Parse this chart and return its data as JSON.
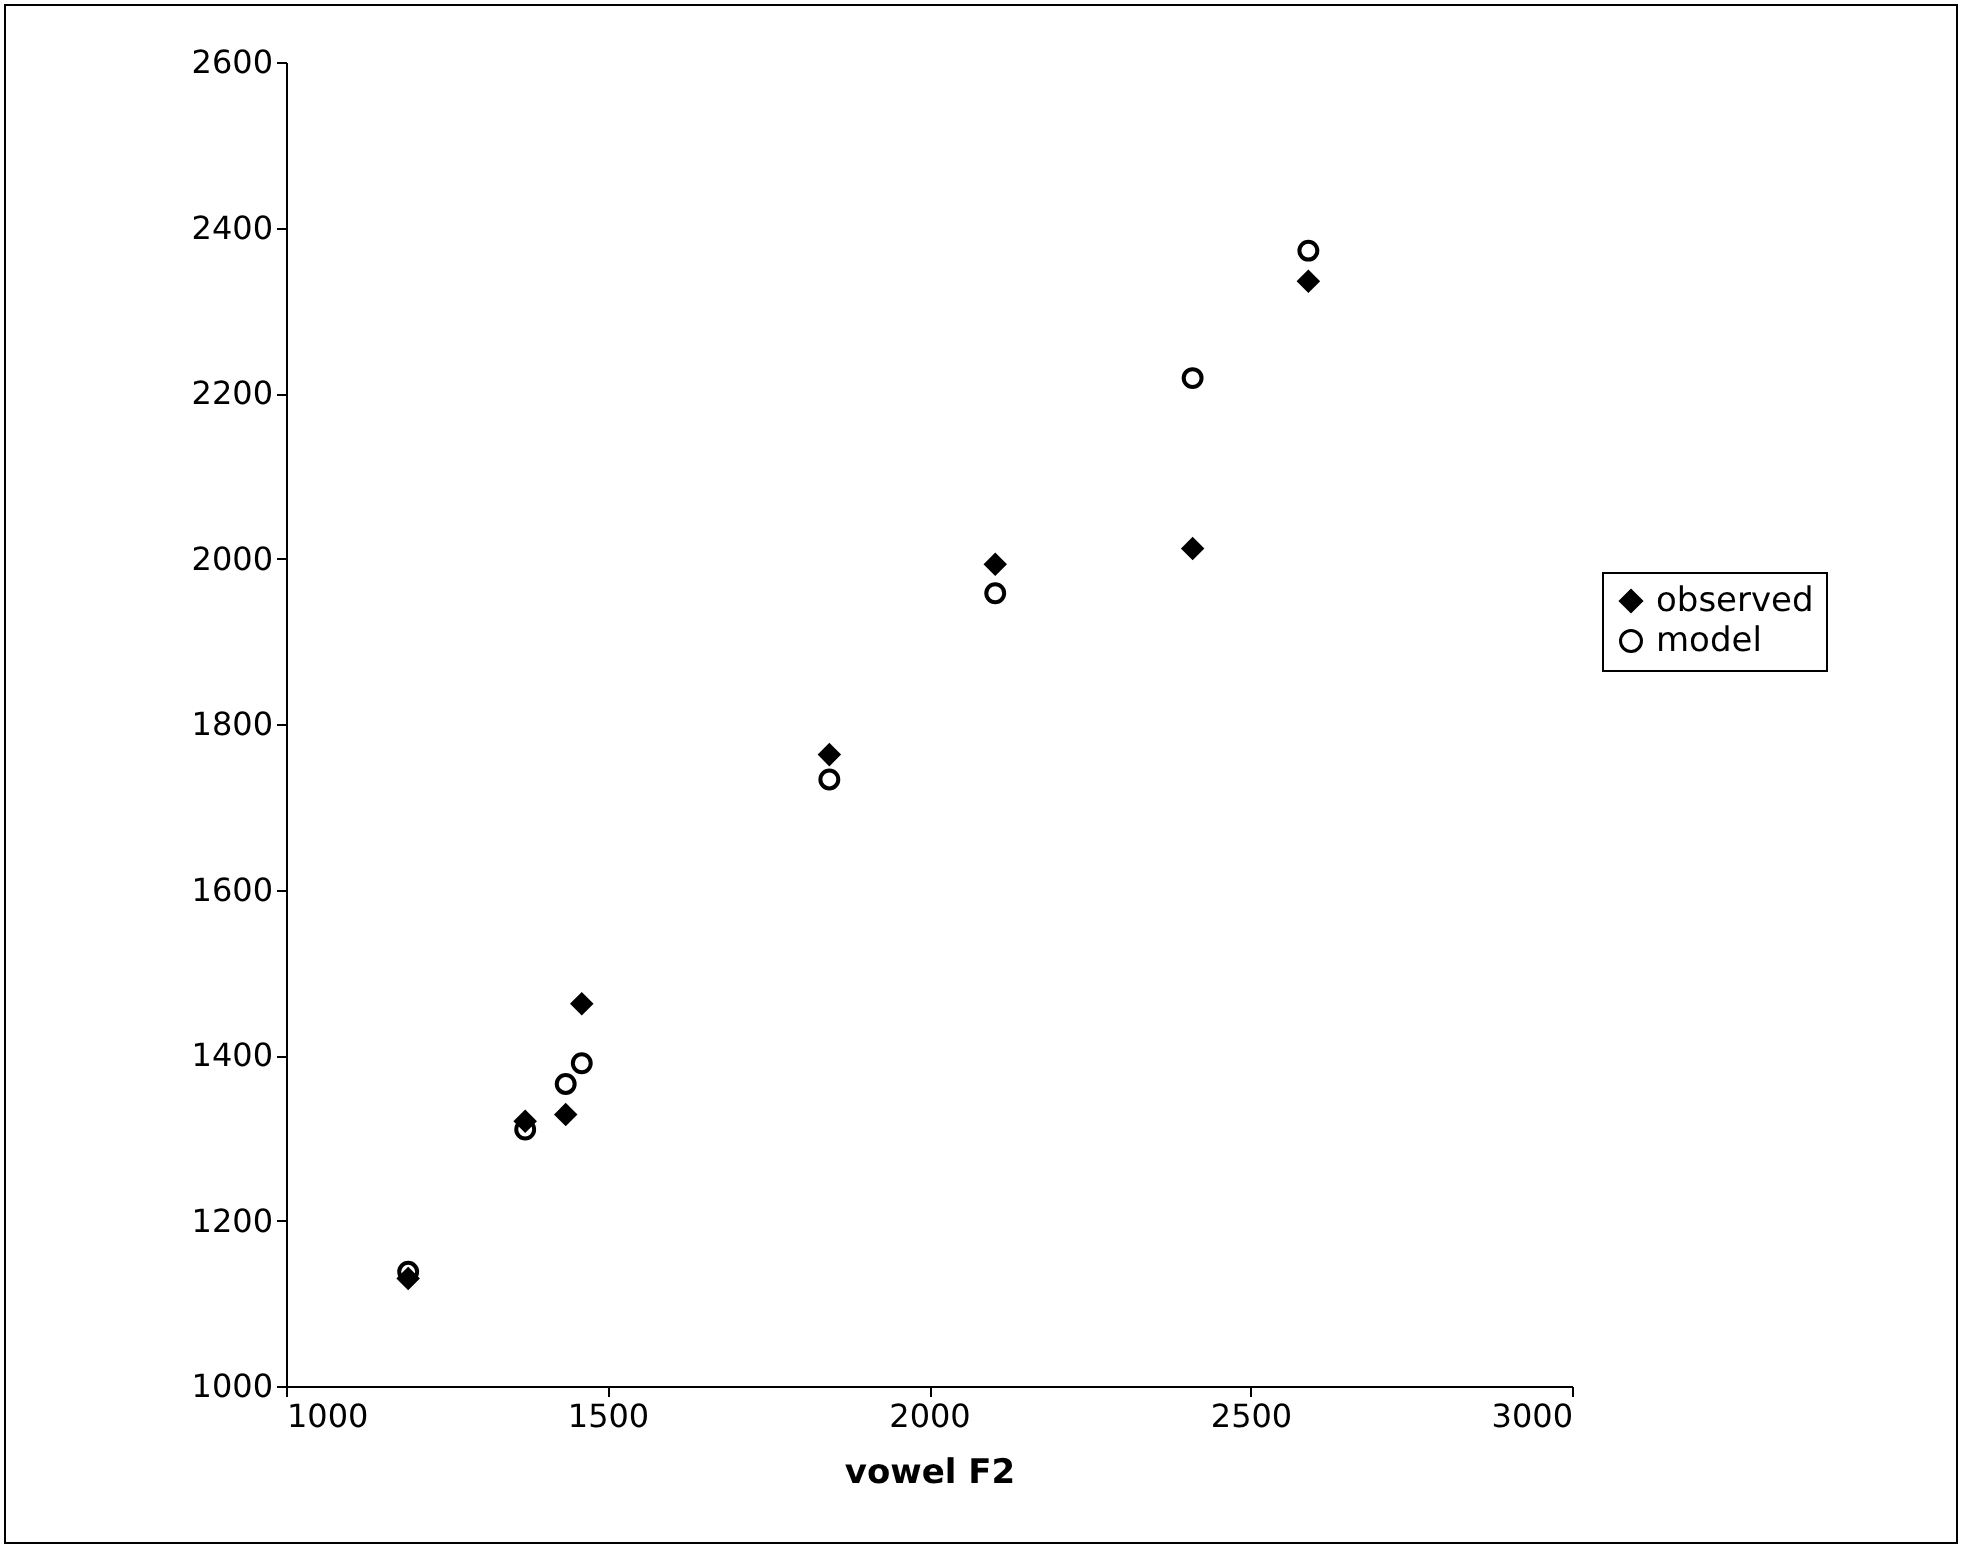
{
  "chart_data": {
    "type": "scatter",
    "xlabel": "vowel F2",
    "xlim": [
      1000,
      3000
    ],
    "xticks": [
      1000,
      1500,
      2000,
      2500,
      3000
    ],
    "ylim": [
      1000,
      2600
    ],
    "yticks": [
      1000,
      1200,
      1400,
      1600,
      1800,
      2000,
      2200,
      2400,
      2600
    ],
    "grid": false,
    "legend": "right",
    "x": [
      1190,
      1372,
      1435,
      1460,
      1845,
      2103,
      2410,
      2590
    ],
    "series": [
      {
        "name": "observed",
        "color": "#000000",
        "marker": "diamond",
        "values": [
          1130,
          1320,
          1328,
          1462,
          1763,
          1993,
          2012,
          2335
        ]
      },
      {
        "name": "model",
        "color": "#000000",
        "marker": "circle",
        "values": [
          1138,
          1310,
          1365,
          1390,
          1733,
          1958,
          2218,
          2372
        ]
      }
    ]
  }
}
